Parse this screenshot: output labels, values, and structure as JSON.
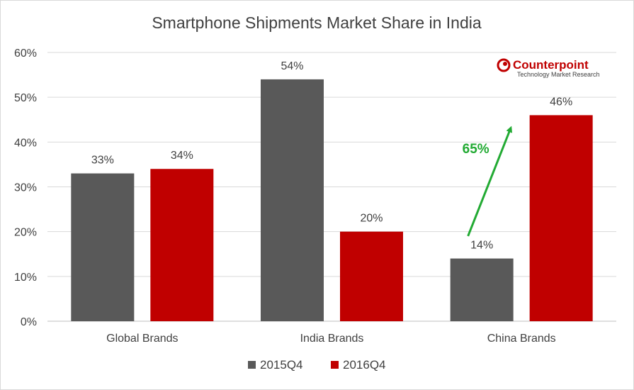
{
  "chart_data": {
    "type": "bar",
    "title": "Smartphone Shipments Market Share in India",
    "categories": [
      "Global Brands",
      "India Brands",
      "China Brands"
    ],
    "series": [
      {
        "name": "2015Q4",
        "color": "#595959",
        "values": [
          33,
          54,
          14
        ],
        "labels": [
          "33%",
          "54%",
          "14%"
        ]
      },
      {
        "name": "2016Q4",
        "color": "#c00000",
        "values": [
          34,
          20,
          46
        ],
        "labels": [
          "34%",
          "20%",
          "46%"
        ]
      }
    ],
    "ylim": [
      0,
      60
    ],
    "y_ticks": [
      "0%",
      "10%",
      "20%",
      "30%",
      "40%",
      "50%",
      "60%"
    ],
    "grid": true,
    "legend_position": "bottom",
    "annotation": {
      "text": "65%",
      "color": "#22aa33",
      "category": "China Brands",
      "from": 19,
      "to": 43
    }
  },
  "logo": {
    "name": "Counterpoint",
    "tagline": "Technology Market Research",
    "color": "#c00000",
    "icon": "counterpoint-logo-icon"
  }
}
